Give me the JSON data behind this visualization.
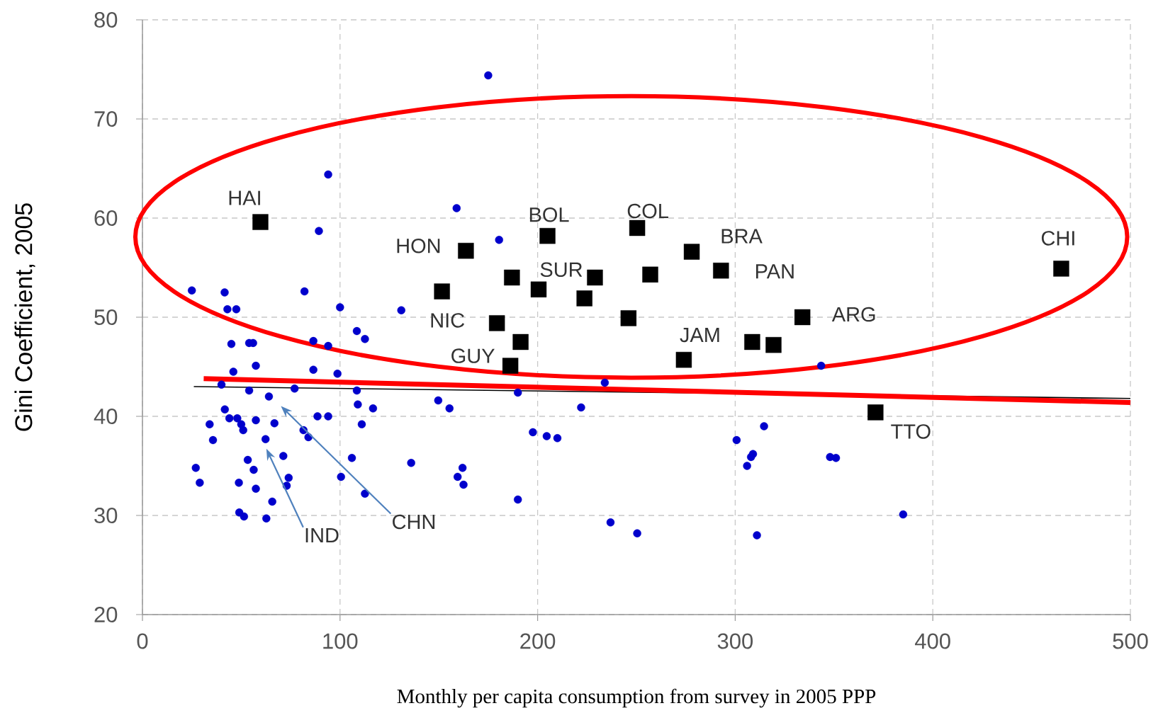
{
  "chart_data": {
    "type": "scatter",
    "xlabel": "Monthly per capita consumption from survey in 2005 PPP",
    "ylabel": "Gini Coefficient, 2005",
    "xlim": [
      0,
      500
    ],
    "ylim": [
      20,
      80
    ],
    "xticks": [
      0,
      100,
      200,
      300,
      400,
      500
    ],
    "yticks": [
      20,
      30,
      40,
      50,
      60,
      70,
      80
    ],
    "grid": true,
    "series": [
      {
        "color": "#0000cc",
        "marker": "circle",
        "x": [
          25,
          41.6,
          43,
          47.5,
          82,
          100,
          45,
          54,
          56,
          86.5,
          94,
          108.5,
          112.6,
          46,
          57.4,
          86.5,
          98.7,
          40,
          54,
          64,
          77,
          108.5,
          41.7,
          109,
          116.7,
          44,
          48,
          50,
          51,
          57.4,
          66.8,
          88.6,
          94,
          111,
          34,
          35.7,
          62.3,
          81.5,
          84,
          27,
          29,
          53.3,
          56.3,
          48.8,
          57.4,
          71.3,
          74,
          73,
          65.7,
          49,
          51.4,
          62.7,
          106,
          100.5,
          112.6,
          94,
          89.3,
          175,
          159,
          180.5,
          131,
          149.7,
          155.4,
          190,
          222,
          234,
          197.6,
          204.6,
          210,
          136,
          162,
          159.5,
          162.5,
          190,
          236.9,
          250.4,
          314.6,
          300.7,
          309,
          308,
          306,
          311,
          343.5,
          348,
          351,
          385
        ],
        "values": [
          52.7,
          52.5,
          50.8,
          50.8,
          52.6,
          51,
          47.3,
          47.4,
          47.4,
          47.6,
          47.1,
          48.6,
          47.8,
          44.5,
          45.1,
          44.7,
          44.3,
          43.2,
          42.6,
          42,
          42.8,
          42.6,
          40.7,
          41.2,
          40.8,
          39.8,
          39.8,
          39.2,
          38.6,
          39.6,
          39.3,
          40,
          40,
          39.2,
          39.2,
          37.6,
          37.7,
          38.6,
          37.9,
          34.8,
          33.3,
          35.6,
          34.6,
          33.3,
          32.7,
          36,
          33.8,
          33,
          31.4,
          30.3,
          29.9,
          29.7,
          35.8,
          33.9,
          32.2,
          64.4,
          58.7,
          74.4,
          61,
          57.8,
          50.7,
          41.6,
          40.8,
          42.4,
          40.9,
          43.4,
          38.4,
          38,
          37.8,
          35.3,
          34.8,
          33.9,
          33.1,
          31.6,
          29.3,
          28.2,
          39,
          37.6,
          36.2,
          35.9,
          35,
          28,
          45.1,
          35.9,
          35.8,
          30.1
        ]
      },
      {
        "color": "#000000",
        "marker": "square",
        "x": [
          59.7,
          163.7,
          205,
          250.4,
          278,
          292.8,
          465,
          151.6,
          187,
          200.5,
          229,
          257,
          223.7,
          179.4,
          246,
          191.4,
          186.2,
          274,
          308.6,
          319.4,
          334,
          371
        ],
        "values": [
          59.6,
          56.7,
          58.2,
          59,
          56.6,
          54.7,
          54.9,
          52.6,
          54,
          52.8,
          54,
          54.3,
          51.9,
          49.4,
          49.9,
          47.5,
          45.1,
          45.7,
          47.5,
          47.2,
          50,
          40.4
        ]
      },
      {
        "type": "line",
        "color": "#000000",
        "x": [
          26,
          500
        ],
        "values": [
          43.0,
          41.8
        ]
      },
      {
        "type": "line",
        "color": "#ff0000",
        "x": [
          31,
          500
        ],
        "values": [
          43.8,
          41.4
        ]
      }
    ],
    "annotations": [
      {
        "text": "HAI",
        "x": 59.7,
        "y": 59.6
      },
      {
        "text": "HON",
        "x": 163.7,
        "y": 56.7
      },
      {
        "text": "BOL",
        "x": 205,
        "y": 58.2
      },
      {
        "text": "COL",
        "x": 250.4,
        "y": 59
      },
      {
        "text": "BRA",
        "x": 278,
        "y": 56.6
      },
      {
        "text": "SUR",
        "x": 200.5,
        "y": 52.8
      },
      {
        "text": "PAN",
        "x": 292.8,
        "y": 54.7
      },
      {
        "text": "NIC",
        "x": 179.4,
        "y": 49.4
      },
      {
        "text": "GUY",
        "x": 186.2,
        "y": 45.1
      },
      {
        "text": "JAM",
        "x": 274,
        "y": 45.7
      },
      {
        "text": "ARG",
        "x": 334,
        "y": 50
      },
      {
        "text": "CHI",
        "x": 465,
        "y": 54.9
      },
      {
        "text": "TTO",
        "x": 371,
        "y": 40.4
      },
      "IND",
      "CHN"
    ]
  }
}
